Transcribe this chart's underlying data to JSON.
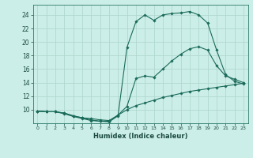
{
  "xlabel": "Humidex (Indice chaleur)",
  "bg_color": "#cceee8",
  "grid_color": "#b0d8d0",
  "line_color": "#1a6b5a",
  "xlim": [
    -0.5,
    23.5
  ],
  "ylim": [
    8,
    25.5
  ],
  "yticks": [
    10,
    12,
    14,
    16,
    18,
    20,
    22,
    24
  ],
  "xticks": [
    0,
    1,
    2,
    3,
    4,
    5,
    6,
    7,
    8,
    9,
    10,
    11,
    12,
    13,
    14,
    15,
    16,
    17,
    18,
    19,
    20,
    21,
    22,
    23
  ],
  "line1_x": [
    0,
    1,
    2,
    3,
    4,
    5,
    6,
    7,
    8,
    9,
    10,
    11,
    12,
    13,
    14,
    15,
    16,
    17,
    18,
    19,
    20,
    21,
    22,
    23
  ],
  "line1_y": [
    9.8,
    9.7,
    9.7,
    9.4,
    9.0,
    8.7,
    8.4,
    8.3,
    8.3,
    9.2,
    10.0,
    10.6,
    11.0,
    11.4,
    11.8,
    12.1,
    12.4,
    12.7,
    12.9,
    13.1,
    13.3,
    13.5,
    13.7,
    13.9
  ],
  "line2_x": [
    0,
    1,
    2,
    3,
    4,
    5,
    6,
    7,
    8,
    9,
    10,
    11,
    12,
    13,
    14,
    15,
    16,
    17,
    18,
    19,
    20,
    21,
    22,
    23
  ],
  "line2_y": [
    9.8,
    9.7,
    9.7,
    9.5,
    9.1,
    8.8,
    8.7,
    8.5,
    8.4,
    9.2,
    10.5,
    14.6,
    15.0,
    14.8,
    16.0,
    17.2,
    18.2,
    19.0,
    19.3,
    18.8,
    16.5,
    15.0,
    14.5,
    14.0
  ],
  "line3_x": [
    0,
    1,
    2,
    3,
    4,
    5,
    6,
    7,
    8,
    9,
    10,
    11,
    12,
    13,
    14,
    15,
    16,
    17,
    18,
    19,
    20,
    21,
    22,
    23
  ],
  "line3_y": [
    9.8,
    9.7,
    9.7,
    9.5,
    9.1,
    8.8,
    8.5,
    8.3,
    8.2,
    9.1,
    19.2,
    23.0,
    24.0,
    23.2,
    24.0,
    24.2,
    24.3,
    24.5,
    24.0,
    22.8,
    18.8,
    15.2,
    14.2,
    13.8
  ]
}
